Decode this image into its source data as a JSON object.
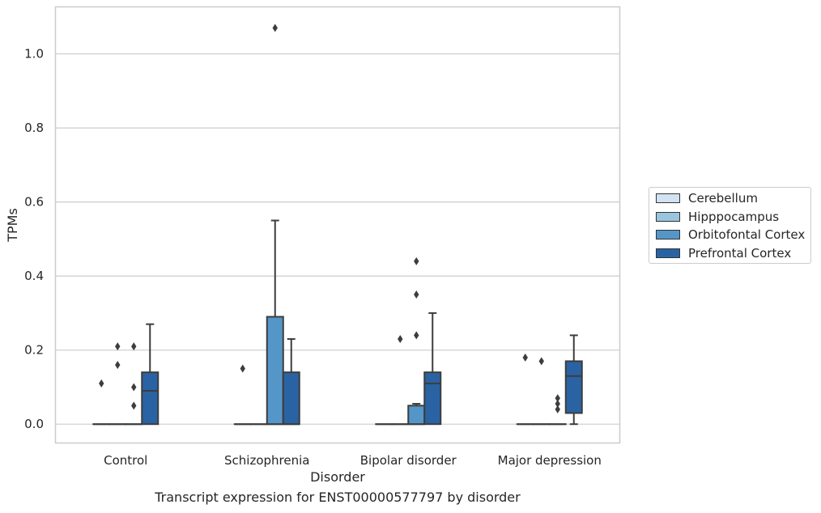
{
  "chart_data": {
    "type": "box",
    "title": "",
    "caption": "Transcript expression for ENST00000577797 by disorder",
    "xlabel": "Disorder",
    "ylabel": "TPMs",
    "ylim": [
      -0.052,
      1.128
    ],
    "yticks": [
      "0.0",
      "0.2",
      "0.4",
      "0.6",
      "0.8",
      "1.0"
    ],
    "ytick_values": [
      0.0,
      0.2,
      0.4,
      0.6,
      0.8,
      1.0
    ],
    "grid": "horizontal",
    "legend_placement": "outside-right",
    "categories": [
      "Control",
      "Schizophrenia",
      "Bipolar disorder",
      "Major depression"
    ],
    "series": [
      {
        "name": "Cerebellum",
        "color": "#d1e2f2",
        "boxes": [
          {
            "q1": 0,
            "median": 0,
            "q3": 0,
            "whisker_low": 0,
            "whisker_high": 0,
            "outliers": [
              0.11
            ]
          },
          {
            "q1": 0,
            "median": 0,
            "q3": 0,
            "whisker_low": 0,
            "whisker_high": 0,
            "outliers": [
              0.15
            ]
          },
          {
            "q1": 0,
            "median": 0,
            "q3": 0,
            "whisker_low": 0,
            "whisker_high": 0,
            "outliers": []
          },
          {
            "q1": 0,
            "median": 0,
            "q3": 0,
            "whisker_low": 0,
            "whisker_high": 0,
            "outliers": [
              0.18
            ]
          }
        ]
      },
      {
        "name": "Hipppocampus",
        "color": "#9ac5df",
        "boxes": [
          {
            "q1": 0,
            "median": 0,
            "q3": 0,
            "whisker_low": 0,
            "whisker_high": 0,
            "outliers": [
              0.16,
              0.21
            ]
          },
          {
            "q1": 0,
            "median": 0,
            "q3": 0,
            "whisker_low": 0,
            "whisker_high": 0,
            "outliers": []
          },
          {
            "q1": 0,
            "median": 0,
            "q3": 0,
            "whisker_low": 0,
            "whisker_high": 0,
            "outliers": [
              0.23
            ]
          },
          {
            "q1": 0,
            "median": 0,
            "q3": 0,
            "whisker_low": 0,
            "whisker_high": 0,
            "outliers": [
              0.17
            ]
          }
        ]
      },
      {
        "name": "Orbitofontal Cortex",
        "color": "#5596c8",
        "boxes": [
          {
            "q1": 0,
            "median": 0,
            "q3": 0,
            "whisker_low": 0,
            "whisker_high": 0,
            "outliers": [
              0.05,
              0.1,
              0.21
            ]
          },
          {
            "q1": 0,
            "median": 0,
            "q3": 0.29,
            "whisker_low": 0,
            "whisker_high": 0.55,
            "outliers": [
              1.07
            ]
          },
          {
            "q1": 0,
            "median": 0,
            "q3": 0.05,
            "whisker_low": 0,
            "whisker_high": 0.055,
            "outliers": [
              0.24,
              0.35,
              0.44
            ]
          },
          {
            "q1": 0,
            "median": 0,
            "q3": 0,
            "whisker_low": 0,
            "whisker_high": 0,
            "outliers": [
              0.04,
              0.055,
              0.07
            ]
          }
        ]
      },
      {
        "name": "Prefrontal Cortex",
        "color": "#2a63a3",
        "boxes": [
          {
            "q1": 0,
            "median": 0.09,
            "q3": 0.14,
            "whisker_low": 0,
            "whisker_high": 0.27,
            "outliers": []
          },
          {
            "q1": 0,
            "median": 0,
            "q3": 0.14,
            "whisker_low": 0,
            "whisker_high": 0.23,
            "outliers": []
          },
          {
            "q1": 0,
            "median": 0.11,
            "q3": 0.14,
            "whisker_low": 0,
            "whisker_high": 0.3,
            "outliers": []
          },
          {
            "q1": 0.03,
            "median": 0.13,
            "q3": 0.17,
            "whisker_low": 0,
            "whisker_high": 0.24,
            "outliers": []
          }
        ]
      }
    ]
  }
}
